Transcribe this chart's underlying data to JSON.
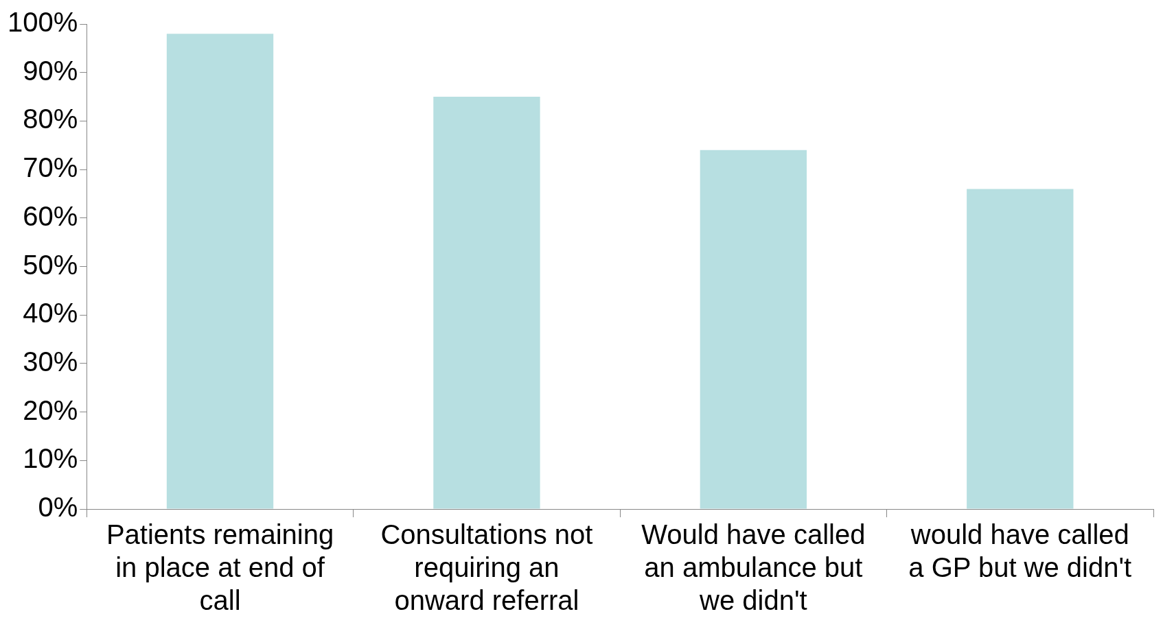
{
  "chart_data": {
    "type": "bar",
    "categories": [
      "Patients remaining in place at end of call",
      "Consultations not requiring an onward referral",
      "Would have called an ambulance but we didn't",
      "would have called a GP but we didn't"
    ],
    "values": [
      98,
      85,
      74,
      66
    ],
    "color": "#b7dfe1",
    "ylim": [
      0,
      100
    ],
    "yticks": [
      {
        "value": 0,
        "label": "0%"
      },
      {
        "value": 10,
        "label": "10%"
      },
      {
        "value": 20,
        "label": "20%"
      },
      {
        "value": 30,
        "label": "30%"
      },
      {
        "value": 40,
        "label": "40%"
      },
      {
        "value": 50,
        "label": "50%"
      },
      {
        "value": 60,
        "label": "60%"
      },
      {
        "value": 70,
        "label": "70%"
      },
      {
        "value": 80,
        "label": "80%"
      },
      {
        "value": 90,
        "label": "90%"
      },
      {
        "value": 100,
        "label": "100%"
      }
    ],
    "grid": false,
    "legend": false
  }
}
